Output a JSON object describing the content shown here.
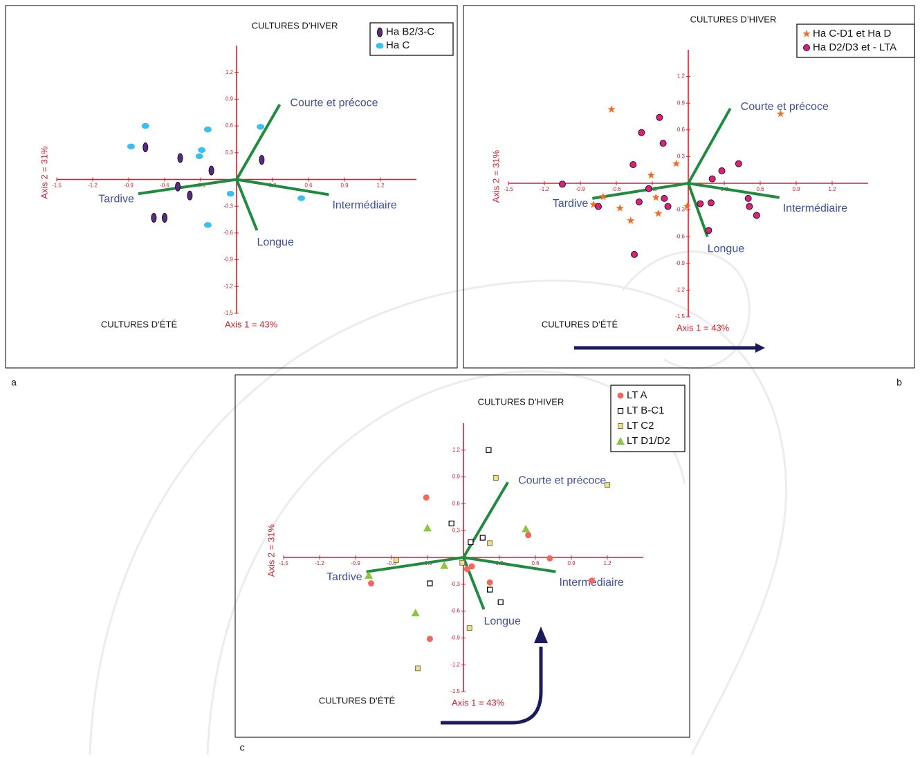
{
  "chart_data": [
    {
      "type": "scatter",
      "panel_label": "a",
      "title": "CULTURES D’HIVER",
      "bottom_label": "CULTURES D’ÉTÉ",
      "xlabel": "Axis 1 = 43%",
      "ylabel": "Axis 2 = 31%",
      "xlim": [
        -1.5,
        1.5
      ],
      "ylim": [
        -1.5,
        1.5
      ],
      "xticks": [
        -1.5,
        -1.2,
        -0.9,
        -0.6,
        -0.3,
        0.3,
        0.6,
        0.9,
        1.2
      ],
      "yticks": [
        1.2,
        0.9,
        0.6,
        0.3,
        -0.3,
        -0.6,
        -0.9,
        -1.2,
        -1.5
      ],
      "series": [
        {
          "name": "Ha B2/3-C",
          "color": "#5b2a86",
          "marker": "ellipse-v",
          "x": [
            -0.76,
            -0.47,
            -0.21,
            0.21,
            -0.49,
            -0.39,
            -0.69,
            -0.6
          ],
          "y": [
            0.36,
            0.24,
            0.1,
            0.22,
            -0.08,
            -0.18,
            -0.43,
            -0.43
          ]
        },
        {
          "name": "Ha C",
          "color": "#39c0ef",
          "marker": "ellipse-h",
          "x": [
            -0.76,
            -0.88,
            -0.24,
            -0.29,
            -0.31,
            0.2,
            -0.05,
            0.54,
            -0.24
          ],
          "y": [
            0.6,
            0.37,
            0.56,
            0.33,
            0.26,
            0.59,
            -0.16,
            -0.21,
            -0.51
          ]
        }
      ],
      "vectors": [
        {
          "name": "Courte et précoce",
          "x": 0.36,
          "y": 0.84
        },
        {
          "name": "Tardive",
          "x": -0.82,
          "y": -0.16
        },
        {
          "name": "Intermédiaire",
          "x": 0.77,
          "y": -0.17
        },
        {
          "name": "Longue",
          "x": 0.17,
          "y": -0.57
        }
      ]
    },
    {
      "type": "scatter",
      "panel_label": "b",
      "title": "CULTURES D’HIVER",
      "bottom_label": "CULTURES D’ÉTÉ",
      "xlabel": "Axis 1 = 43%",
      "ylabel": "Axis 2 = 31%",
      "xlim": [
        -1.5,
        1.5
      ],
      "ylim": [
        -1.5,
        1.5
      ],
      "xticks": [
        -1.5,
        -1.2,
        -0.9,
        -0.6,
        -0.3,
        0.3,
        0.6,
        0.9,
        1.2
      ],
      "yticks": [
        1.2,
        0.9,
        0.6,
        0.3,
        -0.3,
        -0.6,
        -0.9,
        -1.2,
        -1.5
      ],
      "series": [
        {
          "name": "Ha C-D1 et Ha D",
          "color": "#f26b22",
          "marker": "star",
          "x": [
            -0.64,
            0.77,
            -0.1,
            -0.31,
            -0.79,
            -0.71,
            -0.57,
            -0.27,
            -0.48,
            -0.25,
            -0.01
          ],
          "y": [
            0.83,
            0.78,
            0.22,
            0.09,
            -0.24,
            -0.15,
            -0.28,
            -0.16,
            -0.42,
            -0.34,
            -0.26
          ]
        },
        {
          "name": "Ha D2/D3 et - LTA",
          "color": "#d6247a",
          "marker": "circle",
          "x": [
            -0.24,
            -0.39,
            -0.21,
            -0.46,
            -1.05,
            -0.33,
            -0.41,
            -0.2,
            -0.17,
            -0.75,
            0.2,
            0.28,
            0.42,
            0.1,
            0.19,
            0.5,
            0.51,
            0.57,
            0.17,
            -0.45
          ],
          "y": [
            0.74,
            0.57,
            0.45,
            0.21,
            -0.01,
            -0.06,
            -0.21,
            -0.17,
            -0.26,
            -0.26,
            0.05,
            0.14,
            0.22,
            -0.23,
            -0.22,
            -0.17,
            -0.26,
            -0.36,
            -0.53,
            -0.8
          ]
        }
      ],
      "vectors": [
        {
          "name": "Courte et précoce",
          "x": 0.35,
          "y": 0.84
        },
        {
          "name": "Tardive",
          "x": -0.8,
          "y": -0.17
        },
        {
          "name": "Intermédiaire",
          "x": 0.76,
          "y": -0.16
        },
        {
          "name": "Longue",
          "x": 0.16,
          "y": -0.6
        }
      ]
    },
    {
      "type": "scatter",
      "panel_label": "c",
      "title": "CULTURES D’HIVER",
      "bottom_label": "CULTURES D’ÉTÉ",
      "xlabel": "Axis 1 = 43%",
      "ylabel": "Axis 2 = 31%",
      "xlim": [
        -1.5,
        1.5
      ],
      "ylim": [
        -1.5,
        1.5
      ],
      "xticks": [
        -1.5,
        -1.2,
        -0.9,
        -0.6,
        -0.3,
        0.3,
        0.6,
        0.9,
        1.2
      ],
      "yticks": [
        1.2,
        0.9,
        0.6,
        0.3,
        -0.3,
        -0.6,
        -0.9,
        -1.2,
        -1.5
      ],
      "series": [
        {
          "name": "LT A",
          "color": "#ef6a5e",
          "marker": "circle",
          "x": [
            -0.31,
            0.54,
            0.72,
            1.07,
            0.07,
            0.03,
            0.22,
            -0.77,
            -0.28
          ],
          "y": [
            0.67,
            0.25,
            -0.01,
            -0.26,
            -0.1,
            -0.13,
            -0.28,
            -0.29,
            -0.91
          ]
        },
        {
          "name": "LT B-C1",
          "color": "#000000",
          "marker": "square-open",
          "x": [
            0.21,
            -0.1,
            0.06,
            0.16,
            -0.28,
            0.22,
            0.31
          ],
          "y": [
            1.2,
            0.38,
            0.17,
            0.22,
            -0.29,
            -0.36,
            -0.5
          ]
        },
        {
          "name": "LT C2",
          "color": "#f0e27a",
          "marker": "square",
          "x": [
            0.27,
            1.2,
            0.22,
            -0.56,
            -0.01,
            0.05,
            -0.38
          ],
          "y": [
            0.89,
            0.81,
            0.16,
            -0.03,
            -0.06,
            -0.79,
            -1.24
          ]
        },
        {
          "name": "LT D1/D2",
          "color": "#8cc63f",
          "marker": "triangle",
          "x": [
            -0.3,
            0.52,
            -0.16,
            -0.79,
            -0.4
          ],
          "y": [
            0.33,
            0.32,
            -0.09,
            -0.2,
            -0.62
          ]
        }
      ],
      "vectors": [
        {
          "name": "Courte et précoce",
          "x": 0.37,
          "y": 0.84
        },
        {
          "name": "Tardive",
          "x": -0.81,
          "y": -0.16
        },
        {
          "name": "Intermédiaire",
          "x": 0.77,
          "y": -0.16
        },
        {
          "name": "Longue",
          "x": 0.17,
          "y": -0.58
        }
      ]
    }
  ]
}
